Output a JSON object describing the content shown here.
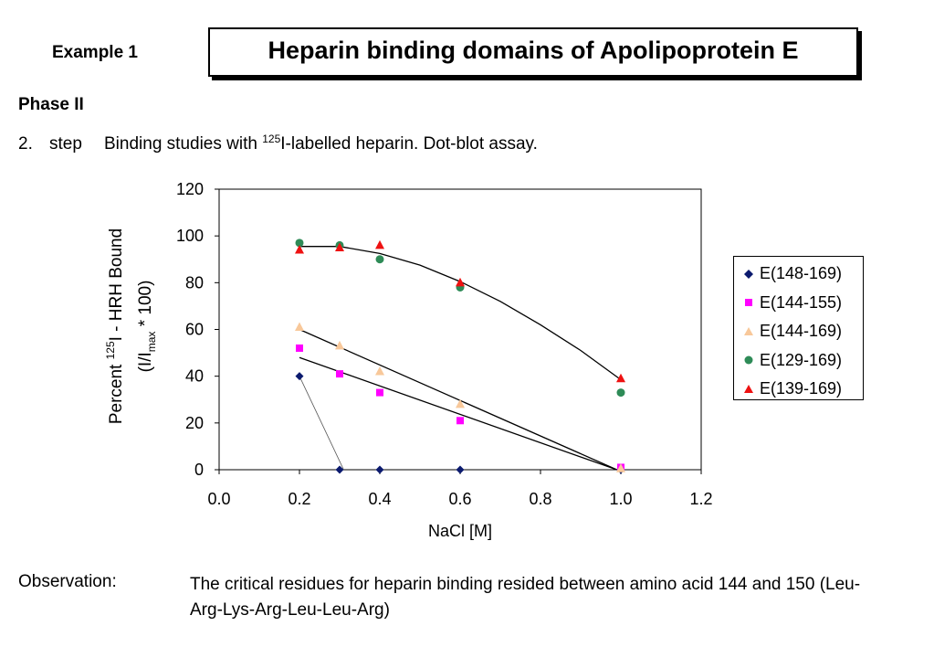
{
  "header": {
    "example_label": "Example 1",
    "title": "Heparin binding domains of Apolipoprotein E"
  },
  "phase_label": "Phase II",
  "step": {
    "number": "2.",
    "word": "step",
    "text_before": "Binding studies with ",
    "superscript": "125",
    "text_after": "I-labelled heparin. Dot-blot assay."
  },
  "observation": {
    "label": "Observation:",
    "text": "The critical residues for heparin binding resided between amino acid 144 and 150 (Leu-Arg-Lys-Arg-Leu-Leu-Arg)"
  },
  "chart_data": {
    "type": "scatter",
    "xlabel": "NaCl [M]",
    "ylabel_parts": {
      "line1_prefix": "Percent ",
      "line1_sup": "125",
      "line1_suffix": "I - HRH Bound",
      "line2_prefix": "(I/I",
      "line2_sub": "max",
      "line2_suffix": " * 100)"
    },
    "xlim": [
      0,
      1.2
    ],
    "ylim": [
      0,
      120
    ],
    "xticks": [
      "0.0",
      "0.2",
      "0.4",
      "0.6",
      "0.8",
      "1.0",
      "1.2"
    ],
    "yticks": [
      "0",
      "20",
      "40",
      "60",
      "80",
      "100",
      "120"
    ],
    "grid": false,
    "legend_position": "right",
    "series": [
      {
        "name": "E(148-169)",
        "marker": "diamond",
        "color": "#0b1a6e",
        "x": [
          0.2,
          0.3,
          0.4,
          0.6,
          1.0
        ],
        "y": [
          40,
          0,
          0,
          0,
          0
        ]
      },
      {
        "name": "E(144-155)",
        "marker": "square",
        "color": "#ff00ff",
        "x": [
          0.2,
          0.3,
          0.4,
          0.6,
          1.0
        ],
        "y": [
          52,
          41,
          33,
          21,
          1
        ]
      },
      {
        "name": "E(144-169)",
        "marker": "triangle",
        "color": "#f8c89a",
        "x": [
          0.2,
          0.3,
          0.4,
          0.6,
          1.0
        ],
        "y": [
          61,
          53,
          42,
          28,
          0.5
        ]
      },
      {
        "name": "E(129-169)",
        "marker": "circle",
        "color": "#2e8b57",
        "x": [
          0.2,
          0.3,
          0.4,
          0.6,
          1.0
        ],
        "y": [
          97,
          96,
          90,
          78,
          33
        ]
      },
      {
        "name": "E(139-169)",
        "marker": "triangle",
        "color": "#ee1111",
        "x": [
          0.2,
          0.3,
          0.4,
          0.6,
          1.0
        ],
        "y": [
          94,
          95,
          96,
          80,
          39
        ]
      }
    ],
    "trendlines": [
      {
        "series": "E(148-169)",
        "kind": "segment",
        "x": [
          0.2,
          0.31
        ],
        "y": [
          40,
          0
        ]
      },
      {
        "series": "E(144-155)",
        "kind": "linear",
        "x": [
          0.2,
          0.99
        ],
        "y": [
          48,
          0
        ]
      },
      {
        "series": "E(144-169)",
        "kind": "linear",
        "x": [
          0.2,
          0.99
        ],
        "y": [
          60,
          0
        ]
      },
      {
        "series": "E(139-169)",
        "kind": "curve",
        "x": [
          0.2,
          0.3,
          0.4,
          0.5,
          0.6,
          0.7,
          0.8,
          0.9,
          1.0
        ],
        "y": [
          95.5,
          95.5,
          92.5,
          87.5,
          80.5,
          72,
          62,
          51,
          38.5
        ]
      }
    ]
  }
}
